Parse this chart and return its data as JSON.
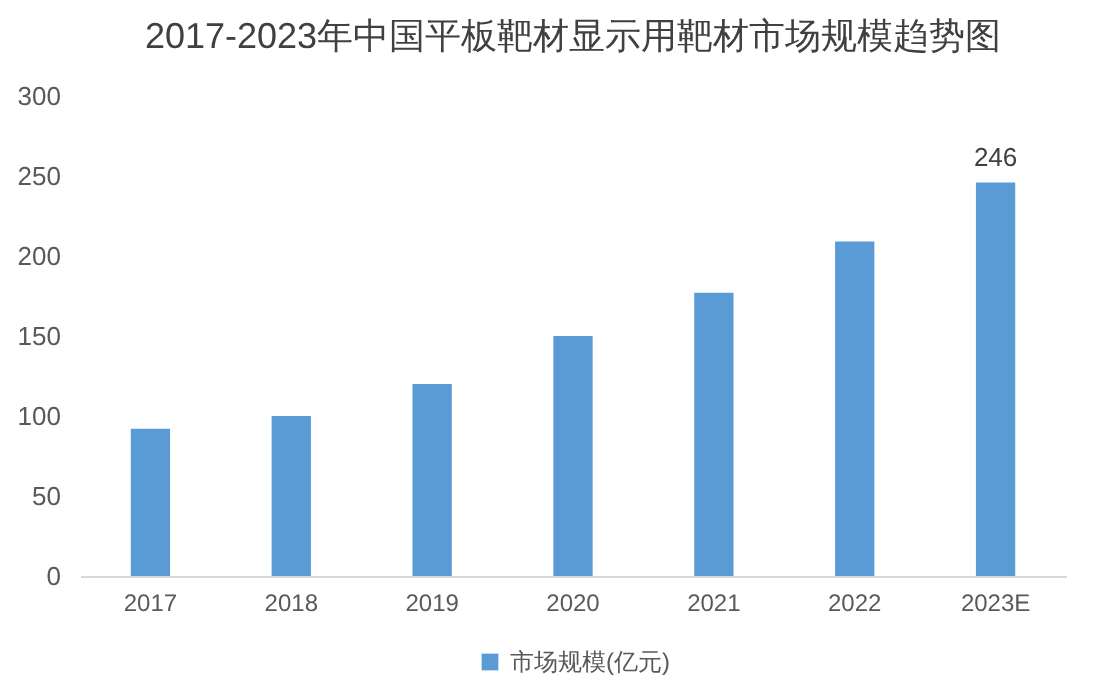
{
  "chart_data": {
    "type": "bar",
    "title": "2017-2023年中国平板靶材显示用靶材市场规模趋势图",
    "categories": [
      "2017",
      "2018",
      "2019",
      "2020",
      "2021",
      "2022",
      "2023E"
    ],
    "series": [
      {
        "name": "市场规模(亿元)",
        "color": "#5b9bd5",
        "values": [
          92,
          100,
          120,
          150,
          177,
          209,
          246
        ],
        "value_labels": [
          null,
          null,
          null,
          null,
          null,
          null,
          "246"
        ]
      }
    ],
    "ylim": [
      0,
      300
    ],
    "yticks": [
      0,
      50,
      100,
      150,
      200,
      250,
      300
    ],
    "grid": false,
    "legend": "bottom"
  }
}
